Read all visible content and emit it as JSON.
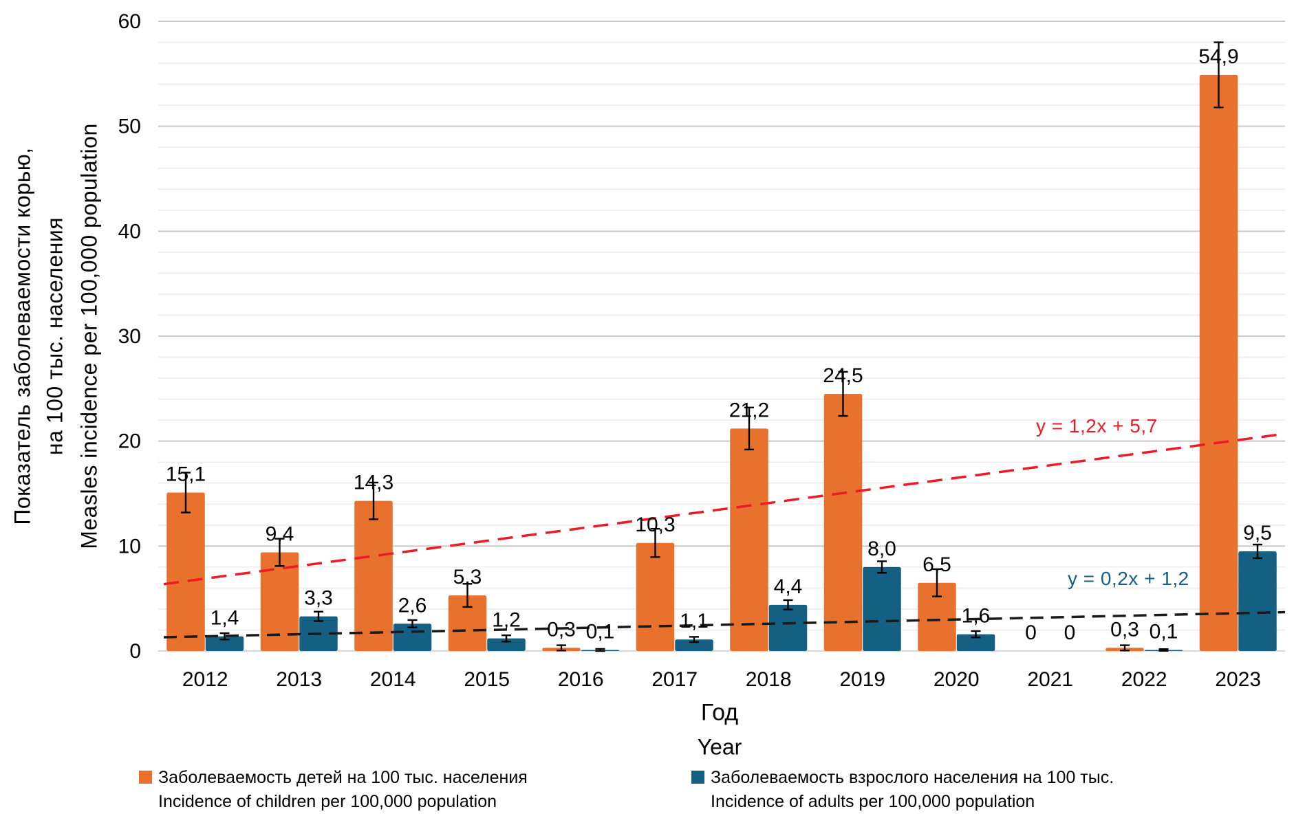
{
  "chart_data": {
    "type": "bar",
    "title": "",
    "categories": [
      "2012",
      "2013",
      "2014",
      "2015",
      "2016",
      "2017",
      "2018",
      "2019",
      "2020",
      "2021",
      "2022",
      "2023"
    ],
    "series": [
      {
        "id": "children",
        "legend_ru": "Заболеваемость детей на 100 тыс. населения",
        "legend_en": "Incidence of children per 100,000 population",
        "color": "#E8712E",
        "label_color": "#EC1B26",
        "values": [
          15.1,
          9.4,
          14.3,
          5.3,
          0.3,
          10.3,
          21.2,
          24.5,
          6.5,
          0,
          0.3,
          54.9
        ],
        "labels": [
          "15,1",
          "9,4",
          "14,3",
          "5,3",
          "0,3",
          "10,3",
          "21,2",
          "24,5",
          "6,5",
          "0",
          "0,3",
          "54,9"
        ],
        "errors": [
          1.9,
          1.3,
          1.75,
          1.1,
          0.25,
          1.35,
          2.0,
          2.1,
          1.3,
          0,
          0.25,
          3.1
        ]
      },
      {
        "id": "adults",
        "legend_ru": "Заболеваемость взрослого населения на 100 тыс.",
        "legend_en": "Incidence of adults per 100,000 population",
        "color": "#156082",
        "label_color": "#156082",
        "values": [
          1.4,
          3.3,
          2.6,
          1.2,
          0.1,
          1.1,
          4.4,
          8.0,
          1.6,
          0,
          0.1,
          9.5
        ],
        "labels": [
          "1,4",
          "3,3",
          "2,6",
          "1,2",
          "0,1",
          "1,1",
          "4,4",
          "8,0",
          "1,6",
          "0",
          "0,1",
          "9,5"
        ],
        "errors": [
          0.3,
          0.45,
          0.35,
          0.3,
          0.1,
          0.25,
          0.45,
          0.55,
          0.3,
          0,
          0.08,
          0.65
        ]
      }
    ],
    "trendlines": [
      {
        "series": "children",
        "equation": "y = 1,2x + 5,7",
        "slope": 1.2,
        "intercept": 5.7,
        "line_color": "#EC1B26",
        "text_color": "#EC1B26",
        "dash": "22 13"
      },
      {
        "series": "adults",
        "equation": "y = 0,2x + 1,2",
        "slope": 0.2,
        "intercept": 1.2,
        "line_color": "#1A1A1A",
        "text_color": "#156082",
        "dash": "19 11"
      }
    ],
    "xlabel_ru": "Год",
    "xlabel_en": "Year",
    "ylabel_ru_line1": "Показатель заболеваемости корью,",
    "ylabel_ru_line2": "на 100 тыс. населения",
    "ylabel_en": "Measles incidence per 100,000 population",
    "ylim": [
      0,
      60
    ],
    "ytick_major": 10,
    "ytick_minor": 2,
    "yticks": [
      "0",
      "10",
      "20",
      "30",
      "40",
      "50",
      "60"
    ],
    "grid": true,
    "legend_position": "bottom",
    "colors": {
      "grid_minor": "#ECECEC",
      "grid_major": "#C8C8C8",
      "axis_line": "#D9D9D9",
      "error_bar": "#000000"
    }
  }
}
